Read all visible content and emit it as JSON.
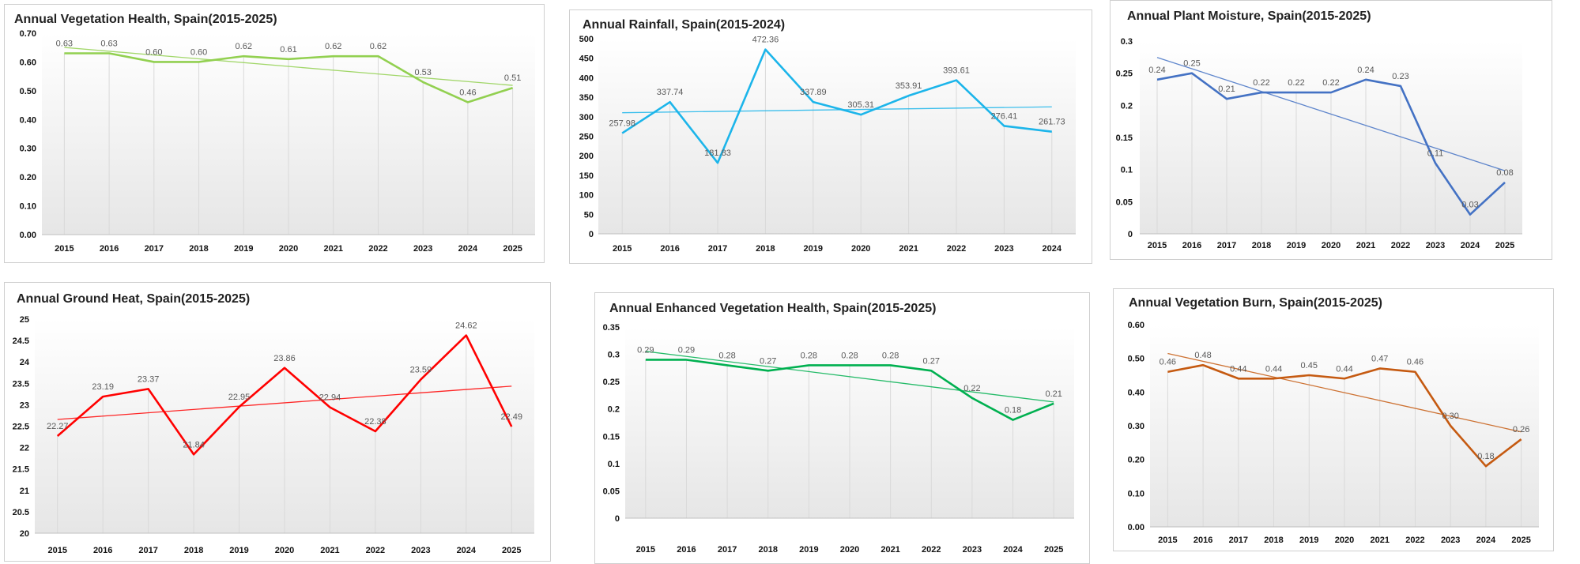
{
  "chart_data": [
    {
      "type": "line",
      "title": "Annual Vegetation Health, Spain(2015-2025)",
      "categories": [
        "2015",
        "2016",
        "2017",
        "2018",
        "2019",
        "2020",
        "2021",
        "2022",
        "2023",
        "2024",
        "2025"
      ],
      "values": [
        0.63,
        0.63,
        0.6,
        0.6,
        0.62,
        0.61,
        0.62,
        0.62,
        0.53,
        0.46,
        0.51
      ],
      "value_labels": [
        "0.63",
        "0.63",
        "0.60",
        "0.60",
        "0.62",
        "0.61",
        "0.62",
        "0.62",
        "0.53",
        "0.46",
        "0.51"
      ],
      "yticks": [
        "0.00",
        "0.10",
        "0.20",
        "0.30",
        "0.40",
        "0.50",
        "0.60",
        "0.70"
      ],
      "ylim": [
        0,
        0.7
      ],
      "trendline": true,
      "color": "#92d050",
      "trend_color": "#92d050",
      "xlabel": "",
      "ylabel": ""
    },
    {
      "type": "line",
      "title": "Annual Rainfall, Spain(2015-2024)",
      "categories": [
        "2015",
        "2016",
        "2017",
        "2018",
        "2019",
        "2020",
        "2021",
        "2022",
        "2023",
        "2024"
      ],
      "values": [
        257.98,
        337.74,
        181.83,
        472.36,
        337.89,
        305.31,
        353.91,
        393.61,
        276.41,
        261.73
      ],
      "value_labels": [
        "257.98",
        "337.74",
        "181.83",
        "472.36",
        "337.89",
        "305.31",
        "353.91",
        "393.61",
        "276.41",
        "261.73"
      ],
      "yticks": [
        "0",
        "50",
        "100",
        "150",
        "200",
        "250",
        "300",
        "350",
        "400",
        "450",
        "500"
      ],
      "ylim": [
        0,
        500
      ],
      "trendline": true,
      "color": "#1cb5ea",
      "trend_color": "#1cb5ea",
      "xlabel": "",
      "ylabel": ""
    },
    {
      "type": "line",
      "title": "Annual Plant Moisture, Spain(2015-2025)",
      "categories": [
        "2015",
        "2016",
        "2017",
        "2018",
        "2019",
        "2020",
        "2021",
        "2022",
        "2023",
        "2024",
        "2025"
      ],
      "values": [
        0.24,
        0.25,
        0.21,
        0.22,
        0.22,
        0.22,
        0.24,
        0.23,
        0.11,
        0.03,
        0.08
      ],
      "value_labels": [
        "0.24",
        "0.25",
        "0.21",
        "0.22",
        "0.22",
        "0.22",
        "0.24",
        "0.23",
        "0.11",
        "0.03",
        "0.08"
      ],
      "yticks": [
        "0",
        "0.05",
        "0.1",
        "0.15",
        "0.2",
        "0.25",
        "0.3"
      ],
      "ylim": [
        0,
        0.3
      ],
      "trendline": true,
      "color": "#4472c4",
      "trend_color": "#4472c4",
      "xlabel": "",
      "ylabel": ""
    },
    {
      "type": "line",
      "title": "Annual Ground Heat, Spain(2015-2025)",
      "categories": [
        "2015",
        "2016",
        "2017",
        "2018",
        "2019",
        "2020",
        "2021",
        "2022",
        "2023",
        "2024",
        "2025"
      ],
      "values": [
        22.27,
        23.19,
        23.37,
        21.84,
        22.95,
        23.86,
        22.94,
        22.38,
        23.59,
        24.62,
        22.49
      ],
      "value_labels": [
        "22.27",
        "23.19",
        "23.37",
        "21.84",
        "22.95",
        "23.86",
        "22.94",
        "22.38",
        "23.59",
        "24.62",
        "22.49"
      ],
      "yticks": [
        "20",
        "20.5",
        "21",
        "21.5",
        "22",
        "22.5",
        "23",
        "23.5",
        "24",
        "24.5",
        "25"
      ],
      "ylim": [
        20,
        25
      ],
      "trendline": true,
      "color": "#ff0000",
      "trend_color": "#ff0000",
      "xlabel": "",
      "ylabel": ""
    },
    {
      "type": "line",
      "title": "Annual Enhanced Vegetation Health, Spain(2015-2025)",
      "categories": [
        "2015",
        "2016",
        "2017",
        "2018",
        "2019",
        "2020",
        "2021",
        "2022",
        "2023",
        "2024",
        "2025"
      ],
      "values": [
        0.29,
        0.29,
        0.28,
        0.27,
        0.28,
        0.28,
        0.28,
        0.27,
        0.22,
        0.18,
        0.21
      ],
      "value_labels": [
        "0.29",
        "0.29",
        "0.28",
        "0.27",
        "0.28",
        "0.28",
        "0.28",
        "0.27",
        "0.22",
        "0.18",
        "0.21"
      ],
      "yticks": [
        "0",
        "0.05",
        "0.1",
        "0.15",
        "0.2",
        "0.25",
        "0.3",
        "0.35"
      ],
      "ylim": [
        0,
        0.35
      ],
      "trendline": true,
      "color": "#00b050",
      "trend_color": "#00b050",
      "xlabel": "",
      "ylabel": ""
    },
    {
      "type": "line",
      "title": "Annual Vegetation Burn, Spain(2015-2025)",
      "categories": [
        "2015",
        "2016",
        "2017",
        "2018",
        "2019",
        "2020",
        "2021",
        "2022",
        "2023",
        "2024",
        "2025"
      ],
      "values": [
        0.46,
        0.48,
        0.44,
        0.44,
        0.45,
        0.44,
        0.47,
        0.46,
        0.3,
        0.18,
        0.26
      ],
      "value_labels": [
        "0.46",
        "0.48",
        "0.44",
        "0.44",
        "0.45",
        "0.44",
        "0.47",
        "0.46",
        "0.30",
        "0.18",
        "0.26"
      ],
      "yticks": [
        "0.00",
        "0.10",
        "0.20",
        "0.30",
        "0.40",
        "0.50",
        "0.60"
      ],
      "ylim": [
        0,
        0.6
      ],
      "trendline": true,
      "color": "#c55a11",
      "trend_color": "#c55a11",
      "xlabel": "",
      "ylabel": ""
    }
  ]
}
